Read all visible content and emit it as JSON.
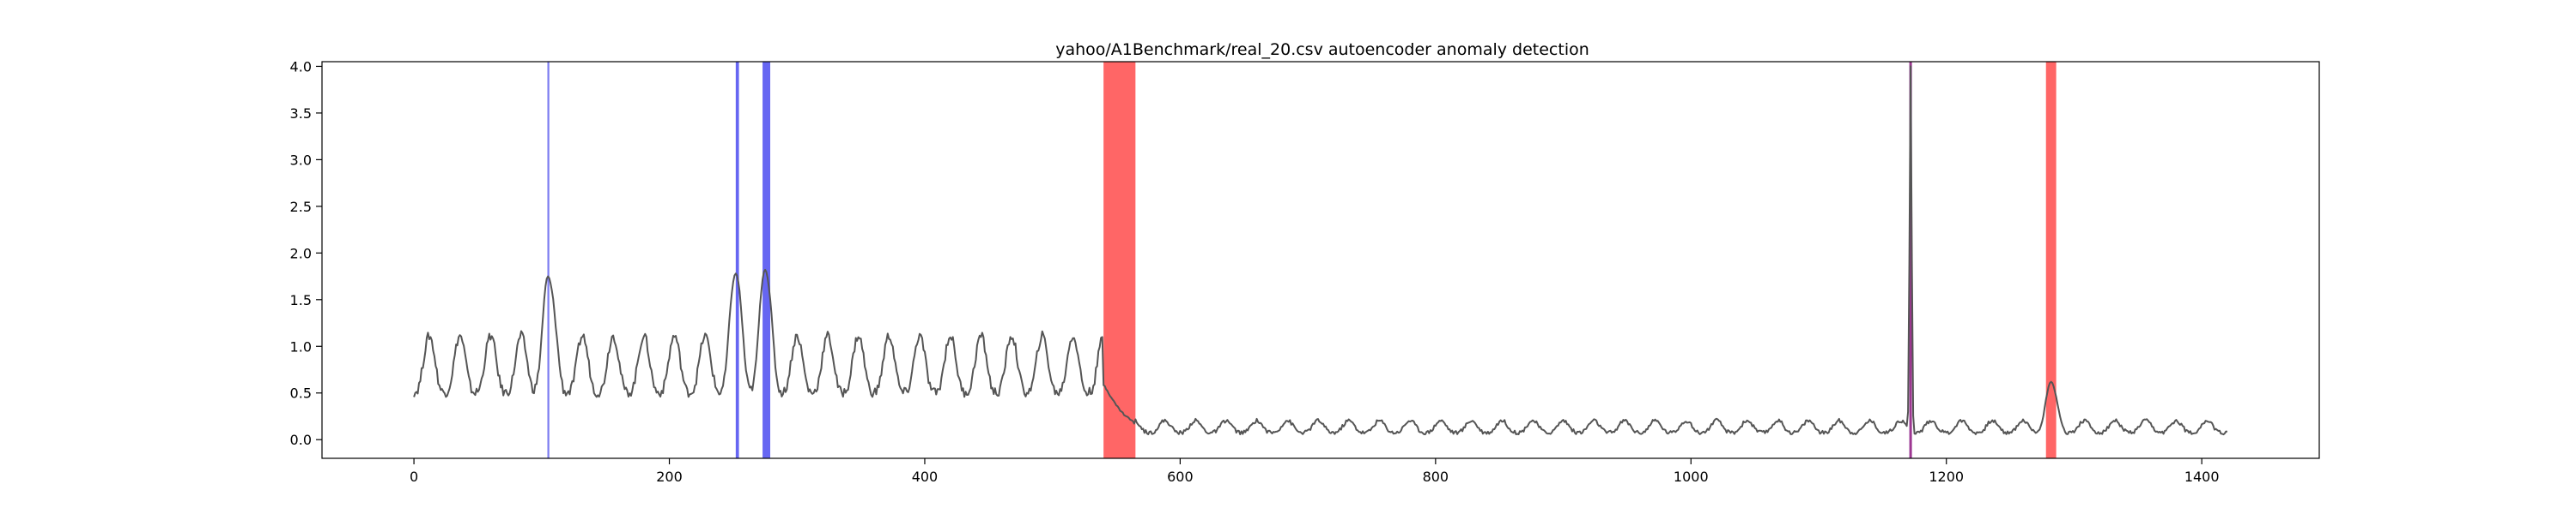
{
  "chart_data": {
    "type": "line",
    "title": "yahoo/A1Benchmark/real_20.csv autoencoder anomaly detection",
    "xlabel": "",
    "ylabel": "",
    "xlim": [
      -72,
      1492
    ],
    "ylim": [
      -0.2,
      4.05
    ],
    "xticks": [
      0,
      200,
      400,
      600,
      800,
      1000,
      1200,
      1400
    ],
    "yticks": [
      0.0,
      0.5,
      1.0,
      1.5,
      2.0,
      2.5,
      3.0,
      3.5,
      4.0
    ],
    "grid": false,
    "line_color": "#555555",
    "series": [
      {
        "x_start": 0,
        "x_end": 1420,
        "segments": [
          {
            "x0": 0,
            "x1": 540,
            "base": 0.62,
            "amplitude": 0.38,
            "period": 24,
            "noise": 0.05
          },
          {
            "x0": 540,
            "x1": 565,
            "base_start": 0.55,
            "base_end": 0.12,
            "amplitude": 0.03,
            "period": 24,
            "noise": 0.01
          },
          {
            "x0": 565,
            "x1": 1420,
            "base": 0.1,
            "amplitude": 0.08,
            "period": 24,
            "noise": 0.02
          }
        ],
        "peaks": [
          {
            "x": 105,
            "y": 1.75
          },
          {
            "x": 252,
            "y": 1.78
          },
          {
            "x": 275,
            "y": 1.82
          },
          {
            "x": 1172,
            "y": 4.0
          },
          {
            "x": 1282,
            "y": 0.62
          }
        ]
      }
    ],
    "anomaly_bands": [
      {
        "kind": "predicted",
        "x0": 104.5,
        "x1": 106,
        "color": "#6666ee",
        "opacity": 0.85
      },
      {
        "kind": "predicted",
        "x0": 252,
        "x1": 254.5,
        "color": "#3333ee",
        "opacity": 0.75
      },
      {
        "kind": "predicted",
        "x0": 273,
        "x1": 279,
        "color": "#3333ee",
        "opacity": 0.75
      },
      {
        "kind": "predicted",
        "x0": 1171,
        "x1": 1173,
        "color": "#3333ee",
        "opacity": 0.8
      },
      {
        "kind": "true",
        "x0": 540,
        "x1": 565,
        "color": "#ff0000",
        "opacity": 0.6
      },
      {
        "kind": "true",
        "x0": 1171,
        "x1": 1173,
        "color": "#ff0000",
        "opacity": 0.4
      },
      {
        "kind": "true",
        "x0": 1278,
        "x1": 1286,
        "color": "#ff0000",
        "opacity": 0.6
      }
    ]
  }
}
